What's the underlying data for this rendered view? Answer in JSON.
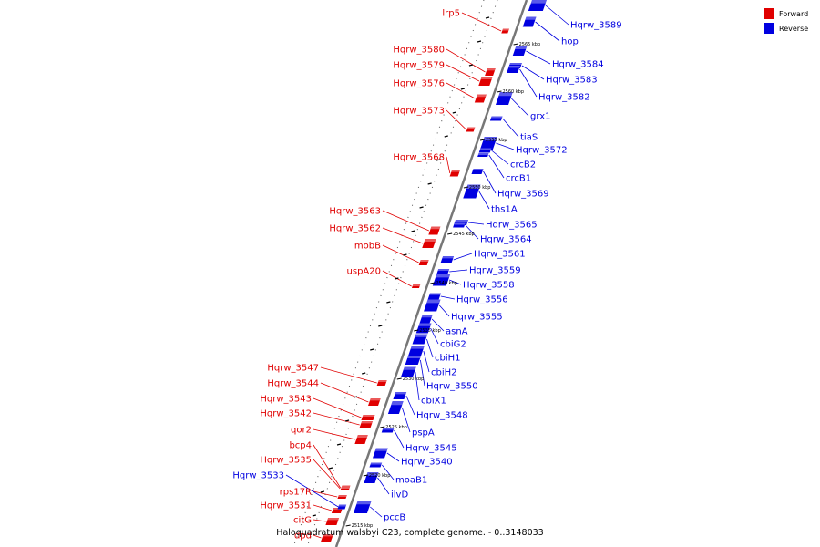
{
  "caption": "Haloquadratum walsbyi C23, complete genome. - 0..3148033",
  "colors": {
    "forward": "#e00000",
    "reverse": "#0000e0",
    "line": "#777777"
  },
  "legend": [
    {
      "label": "Forward",
      "color": "#e00000"
    },
    {
      "label": "Reverse",
      "color": "#0000e0"
    }
  ],
  "kbp_ticks": [
    "2565 kbp",
    "2560 kbp",
    "2555 kbp",
    "2550 kbp",
    "2545 kbp",
    "2540 kbp",
    "2535 kbp",
    "2530 kbp",
    "2525 kbp",
    "2520 kbp",
    "2515 kbp"
  ],
  "forward_genes": [
    "lrp5",
    "Hqrw_3580",
    "Hqrw_3579",
    "Hqrw_3576",
    "Hqrw_3573",
    "Hqrw_3568",
    "Hqrw_3563",
    "Hqrw_3562",
    "mobB",
    "uspA20",
    "Hqrw_3547",
    "Hqrw_3544",
    "Hqrw_3543",
    "Hqrw_3542",
    "qor2",
    "bcp4",
    "Hqrw_3535",
    "rps17R",
    "Hqrw_3531",
    "citG",
    "dpd"
  ],
  "reverse_genes": [
    "Hqrw_3589",
    "hop",
    "Hqrw_3584",
    "Hqrw_3583",
    "Hqrw_3582",
    "grx1",
    "tiaS",
    "Hqrw_3572",
    "crcB2",
    "crcB1",
    "Hqrw_3569",
    "ths1A",
    "Hqrw_3565",
    "Hqrw_3564",
    "Hqrw_3561",
    "Hqrw_3559",
    "Hqrw_3558",
    "Hqrw_3556",
    "Hqrw_3555",
    "asnA",
    "cbiG2",
    "cbiH1",
    "cbiH2",
    "Hqrw_3550",
    "cbiX1",
    "Hqrw_3548",
    "pspA",
    "Hqrw_3545",
    "Hqrw_3540",
    "moaB1",
    "ilvD",
    "pccB"
  ],
  "left_blue_genes": [
    "Hqrw_3533"
  ]
}
